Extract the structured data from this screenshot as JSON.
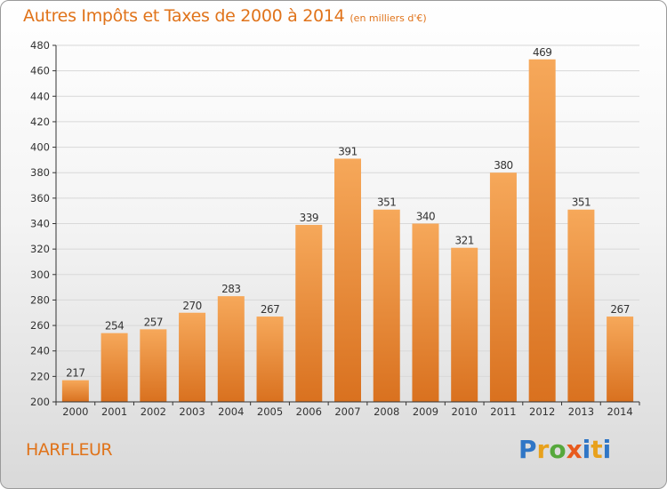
{
  "title": "Autres Impôts et Taxes de 2000 à 2014",
  "unit": "(en milliers d'€)",
  "city": "HARFLEUR",
  "logo": "Proxiti",
  "colors": {
    "bar_light": "#f6a85a",
    "bar_dark": "#d9711f",
    "title": "#e0731a",
    "grid": "#d8d8d8",
    "axis": "#333333",
    "logo_letters": [
      "#2f76c6",
      "#e8a11c",
      "#56a83c",
      "#e85a1d",
      "#2f76c6",
      "#e8a11c",
      "#2f76c6"
    ]
  },
  "chart_data": {
    "type": "bar",
    "categories": [
      "2000",
      "2001",
      "2002",
      "2003",
      "2004",
      "2005",
      "2006",
      "2007",
      "2008",
      "2009",
      "2010",
      "2011",
      "2012",
      "2013",
      "2014"
    ],
    "values": [
      217,
      254,
      257,
      270,
      283,
      267,
      339,
      391,
      351,
      340,
      321,
      380,
      469,
      351,
      267
    ],
    "ylim": [
      200,
      480
    ],
    "yticks": [
      200,
      220,
      240,
      260,
      280,
      300,
      320,
      340,
      360,
      380,
      400,
      420,
      440,
      460,
      480
    ],
    "grid": true,
    "data_labels": true
  }
}
